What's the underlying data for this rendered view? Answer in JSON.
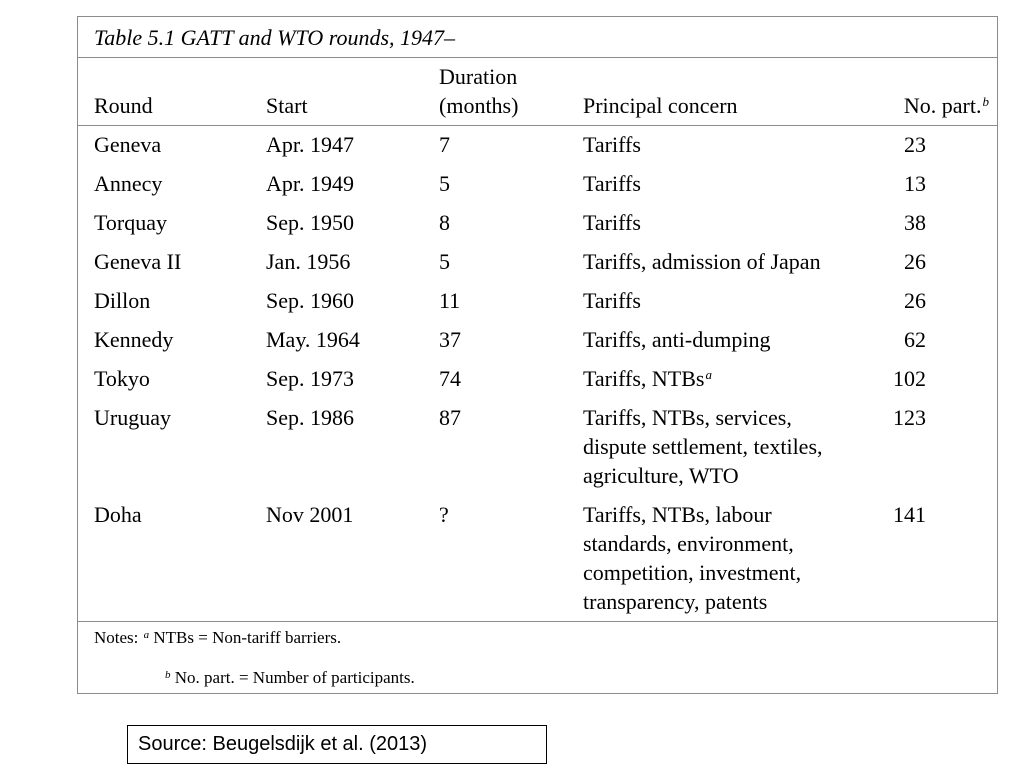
{
  "table": {
    "caption": "Table 5.1 GATT and WTO rounds, 1947–",
    "headers": {
      "round": "Round",
      "start": "Start",
      "duration_line1": "Duration",
      "duration_line2": "(months)",
      "concern": "Principal concern",
      "participants": "No. part.",
      "participants_footnote": "b"
    },
    "rows": [
      {
        "round": "Geneva",
        "start": "Apr. 1947",
        "duration": "7",
        "concern": [
          "Tariffs"
        ],
        "concern_footnote": "",
        "participants": "23"
      },
      {
        "round": "Annecy",
        "start": "Apr. 1949",
        "duration": "5",
        "concern": [
          "Tariffs"
        ],
        "concern_footnote": "",
        "participants": "13"
      },
      {
        "round": "Torquay",
        "start": "Sep. 1950",
        "duration": "8",
        "concern": [
          "Tariffs"
        ],
        "concern_footnote": "",
        "participants": "38"
      },
      {
        "round": "Geneva II",
        "start": "Jan. 1956",
        "duration": "5",
        "concern": [
          "Tariffs, admission of Japan"
        ],
        "concern_footnote": "",
        "participants": "26"
      },
      {
        "round": "Dillon",
        "start": "Sep. 1960",
        "duration": "11",
        "concern": [
          "Tariffs"
        ],
        "concern_footnote": "",
        "participants": "26"
      },
      {
        "round": "Kennedy",
        "start": "May. 1964",
        "duration": "37",
        "concern": [
          "Tariffs, anti-dumping"
        ],
        "concern_footnote": "",
        "participants": "62"
      },
      {
        "round": "Tokyo",
        "start": "Sep. 1973",
        "duration": "74",
        "concern": [
          "Tariffs, NTBs"
        ],
        "concern_footnote": "a",
        "participants": "102"
      },
      {
        "round": "Uruguay",
        "start": "Sep. 1986",
        "duration": "87",
        "concern": [
          "Tariffs, NTBs, services,",
          "dispute settlement, textiles,",
          "agriculture, WTO"
        ],
        "concern_footnote": "",
        "participants": "123"
      },
      {
        "round": "Doha",
        "start": "Nov 2001",
        "duration": "?",
        "concern": [
          "Tariffs, NTBs, labour",
          "standards, environment,",
          "competition, investment,",
          "transparency, patents"
        ],
        "concern_footnote": "",
        "participants": "141"
      }
    ],
    "notes": {
      "prefix": "Notes:",
      "note_a_marker": "a",
      "note_a_text": "NTBs = Non-tariff barriers.",
      "note_b_marker": "b",
      "note_b_text": "No. part. = Number of participants."
    }
  },
  "source": "Source: Beugelsdijk et al. (2013)"
}
